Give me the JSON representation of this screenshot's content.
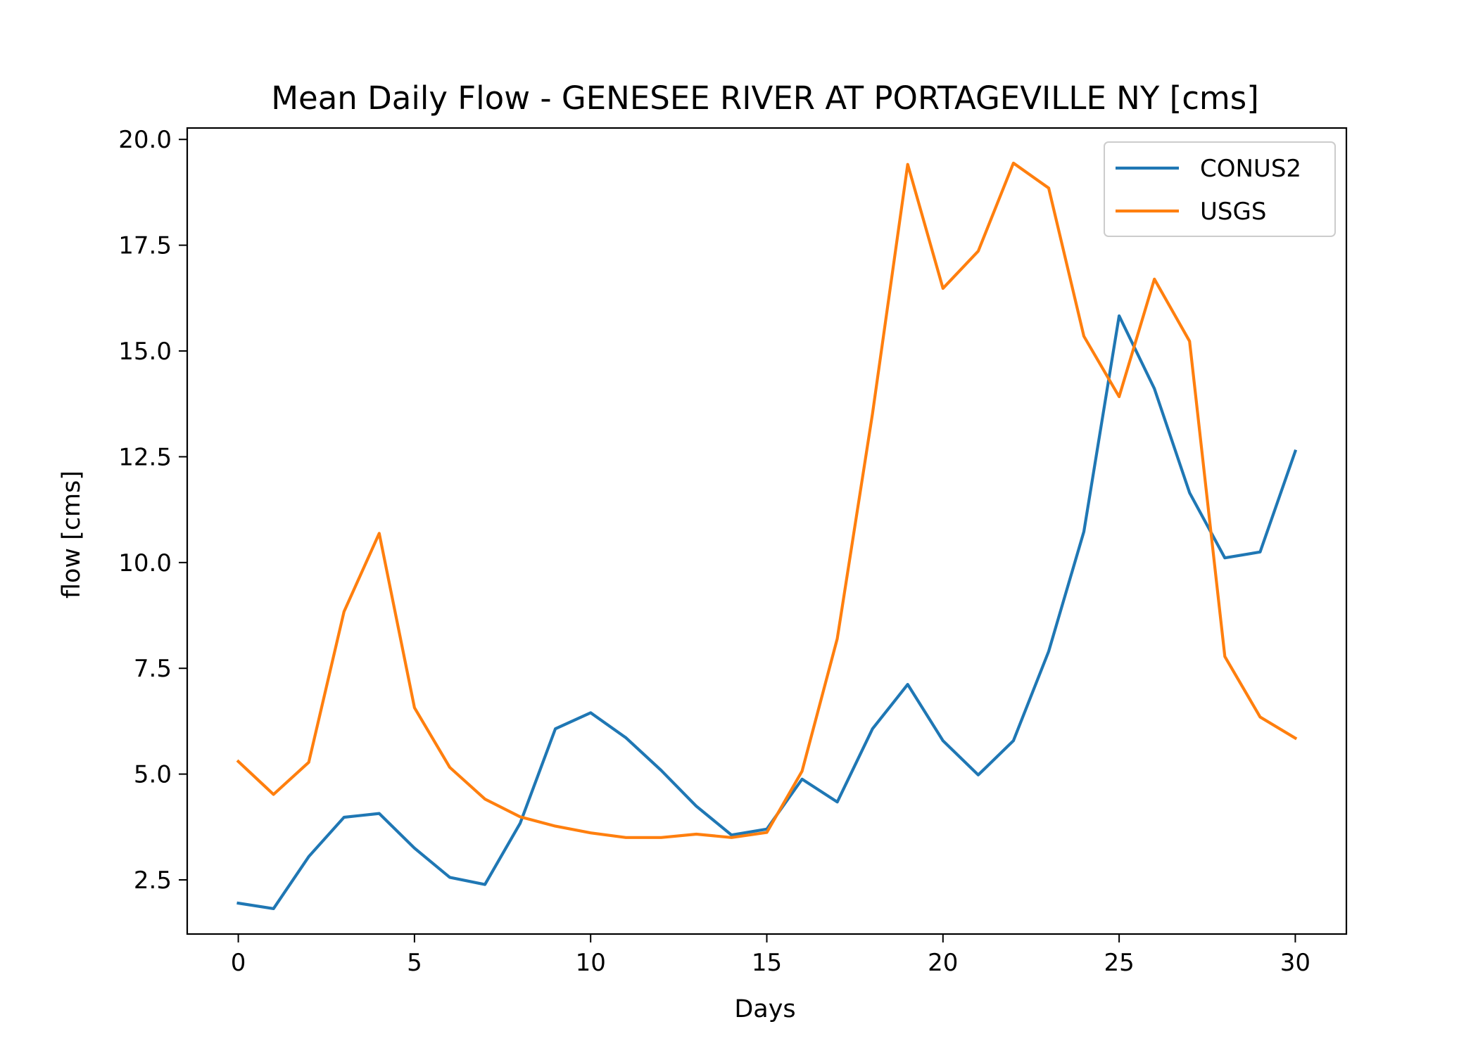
{
  "chart_data": {
    "type": "line",
    "title": "Mean Daily Flow - GENESEE RIVER AT PORTAGEVILLE NY [cms]",
    "xlabel": "Days",
    "ylabel": "flow [cms]",
    "xlim": [
      -1.45,
      31.45
    ],
    "ylim": [
      1.22,
      20.27
    ],
    "xticks": [
      0,
      5,
      10,
      15,
      20,
      25,
      30
    ],
    "yticks": [
      2.5,
      5.0,
      7.5,
      10.0,
      12.5,
      15.0,
      17.5,
      20.0
    ],
    "xtick_labels": [
      "0",
      "5",
      "10",
      "15",
      "20",
      "25",
      "30"
    ],
    "ytick_labels": [
      "2.5",
      "5.0",
      "7.5",
      "10.0",
      "12.5",
      "15.0",
      "17.5",
      "20.0"
    ],
    "grid": false,
    "legend": "upper right",
    "x": [
      0,
      1,
      2,
      3,
      4,
      5,
      6,
      7,
      8,
      9,
      10,
      11,
      12,
      13,
      14,
      15,
      16,
      17,
      18,
      19,
      20,
      21,
      22,
      23,
      24,
      25,
      26,
      27,
      28,
      29,
      30
    ],
    "series": [
      {
        "name": "CONUS2",
        "color": "#1f77b4",
        "values": [
          1.95,
          1.82,
          3.05,
          3.98,
          4.07,
          3.25,
          2.56,
          2.39,
          3.84,
          6.07,
          6.45,
          5.86,
          5.09,
          4.24,
          3.56,
          3.7,
          4.88,
          4.34,
          6.07,
          7.12,
          5.79,
          4.98,
          5.79,
          7.9,
          10.73,
          15.83,
          14.11,
          11.65,
          10.11,
          10.25,
          12.63
        ]
      },
      {
        "name": "USGS",
        "color": "#ff7f0e",
        "values": [
          5.3,
          4.52,
          5.28,
          8.84,
          10.69,
          6.57,
          5.16,
          4.41,
          3.99,
          3.77,
          3.61,
          3.5,
          3.5,
          3.58,
          3.5,
          3.62,
          5.07,
          8.2,
          13.52,
          19.41,
          16.48,
          17.36,
          19.44,
          18.85,
          15.35,
          13.92,
          16.7,
          15.23,
          7.78,
          6.35,
          5.85
        ]
      }
    ]
  }
}
